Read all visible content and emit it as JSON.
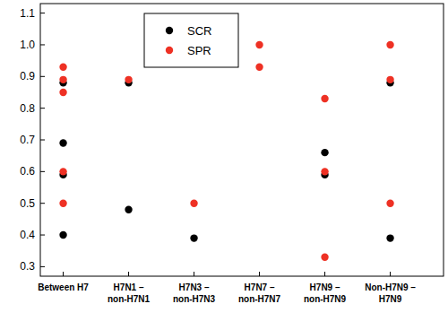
{
  "chart_data": {
    "type": "scatter",
    "categories": [
      "Between H7",
      "H7N1 –\nnon-H7N1",
      "H7N3 –\nnon-H7N3",
      "H7N7 –\nnon-H7N7",
      "H7N9 –\nnon-H7N9",
      "Non-H7N9 –\nH7N9"
    ],
    "series": [
      {
        "name": "SCR",
        "color": "#000000",
        "marker": "circle",
        "values": [
          [
            0.88,
            0.69,
            0.59,
            0.4
          ],
          [
            0.88,
            0.48
          ],
          [
            0.39
          ],
          [],
          [
            0.66,
            0.59
          ],
          [
            0.88,
            0.39
          ]
        ]
      },
      {
        "name": "SPR",
        "color": "#ee3124",
        "marker": "circle",
        "values": [
          [
            0.93,
            0.89,
            0.85,
            0.6,
            0.5
          ],
          [
            0.89
          ],
          [
            0.5
          ],
          [
            1.0,
            0.93
          ],
          [
            0.83,
            0.6,
            0.33
          ],
          [
            1.0,
            0.89,
            0.5
          ]
        ]
      }
    ],
    "ylim": [
      0.27,
      1.13
    ],
    "yticks": [
      0.3,
      0.4,
      0.5,
      0.6,
      0.7,
      0.8,
      0.9,
      {
        "value": 1,
        "label": "1.0"
      },
      1.1
    ],
    "legend": "upper left",
    "grid": false
  }
}
